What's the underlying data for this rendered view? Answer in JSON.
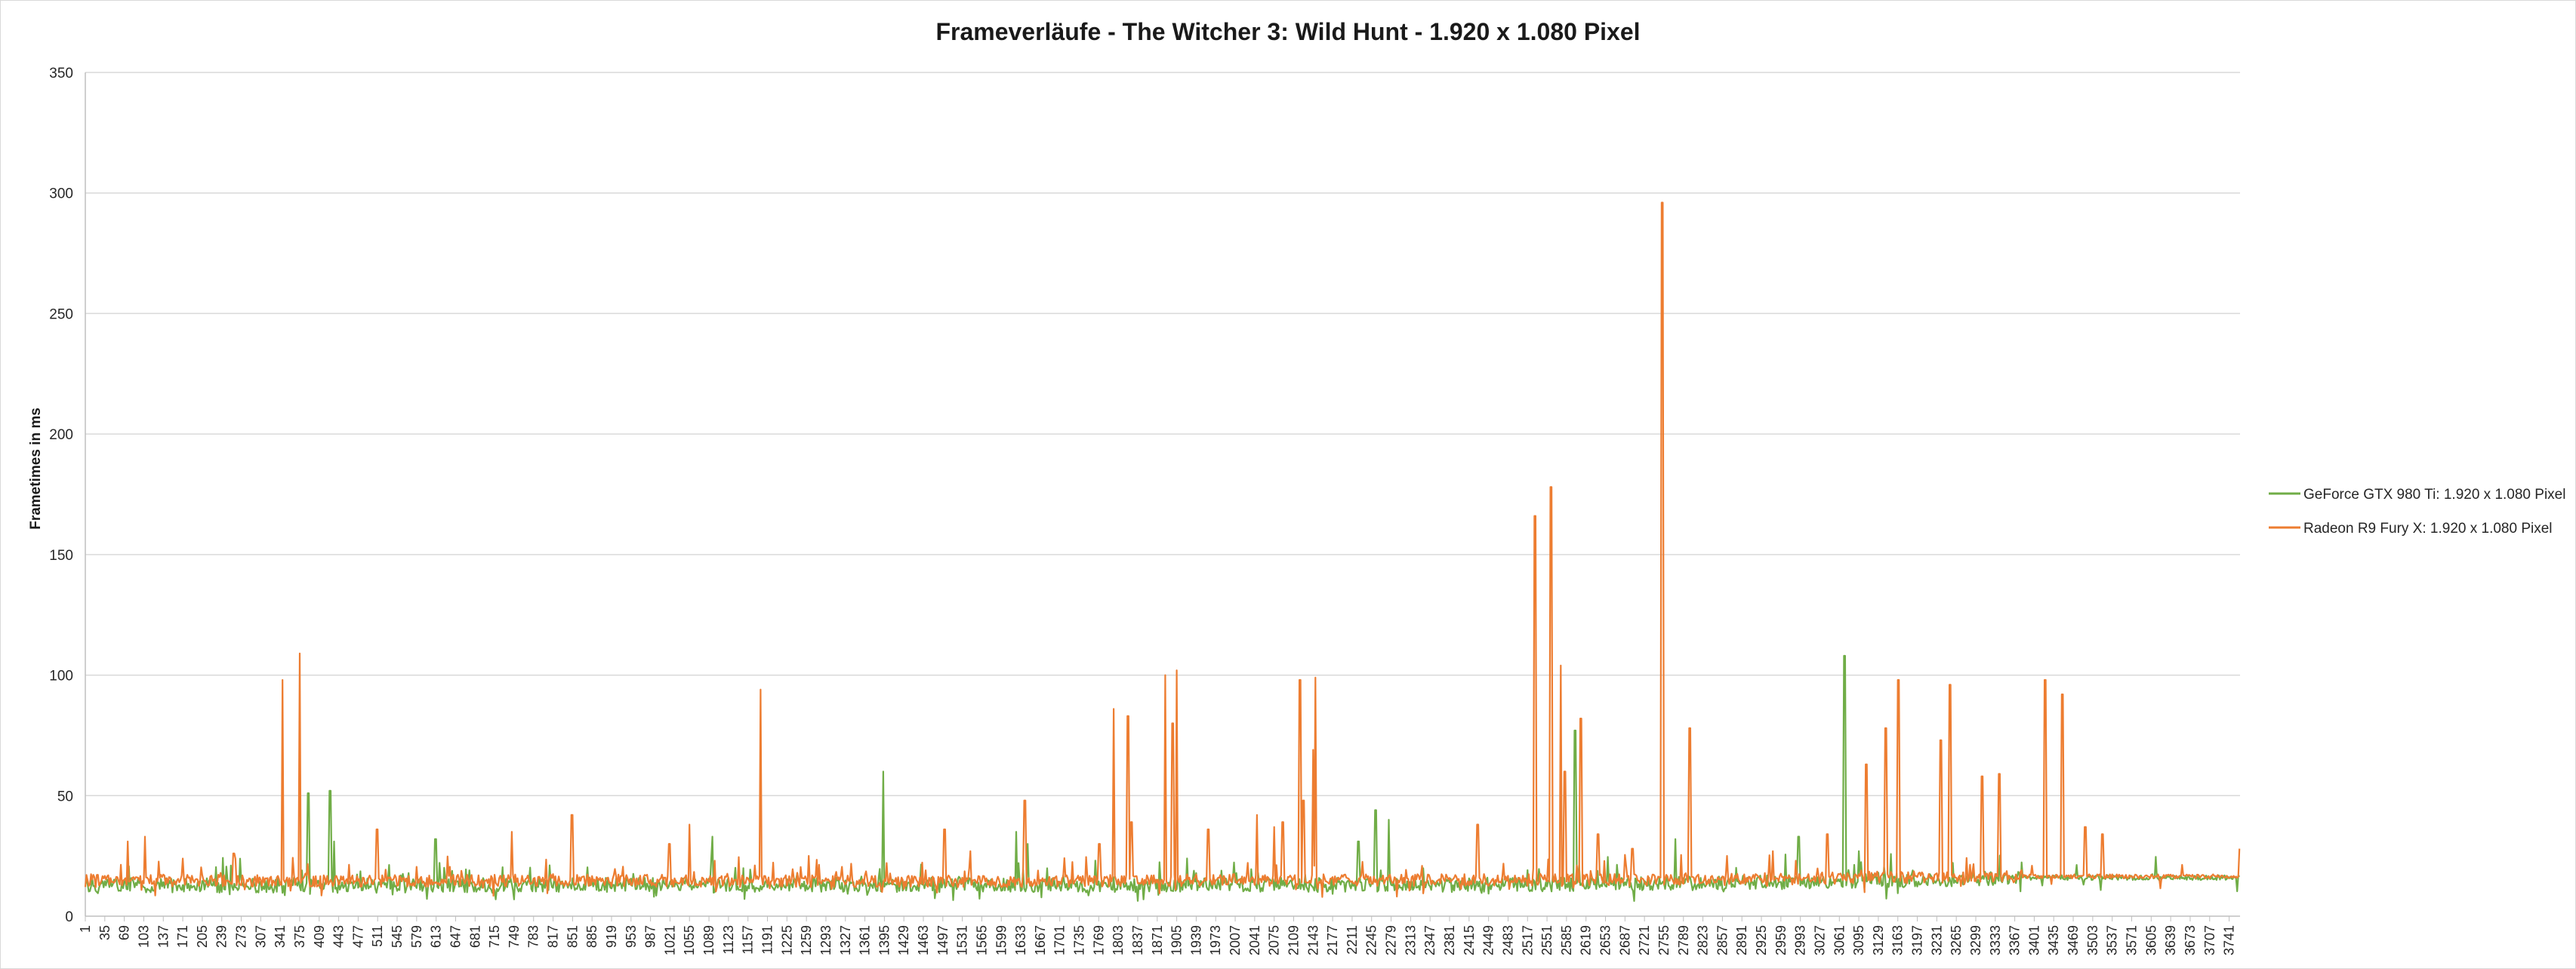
{
  "chart_data": {
    "type": "line",
    "title": "Frameverläufe - The Witcher 3: Wild Hunt - 1.920 x 1.080 Pixel",
    "xlabel": "",
    "ylabel": "Frametimes in ms",
    "xlim": [
      1,
      3760
    ],
    "ylim": [
      0,
      350
    ],
    "yticks": [
      0,
      50,
      100,
      150,
      200,
      250,
      300,
      350
    ],
    "xticks": [
      1,
      35,
      69,
      103,
      137,
      171,
      205,
      239,
      273,
      307,
      341,
      375,
      409,
      443,
      477,
      511,
      545,
      579,
      613,
      647,
      681,
      715,
      749,
      783,
      817,
      851,
      885,
      919,
      953,
      987,
      1021,
      1055,
      1089,
      1123,
      1157,
      1191,
      1225,
      1259,
      1293,
      1327,
      1361,
      1395,
      1429,
      1463,
      1497,
      1531,
      1565,
      1599,
      1633,
      1667,
      1701,
      1735,
      1769,
      1803,
      1837,
      1871,
      1905,
      1939,
      1973,
      2007,
      2041,
      2075,
      2109,
      2143,
      2177,
      2211,
      2245,
      2279,
      2313,
      2347,
      2381,
      2415,
      2449,
      2483,
      2517,
      2551,
      2585,
      2619,
      2653,
      2687,
      2721,
      2755,
      2789,
      2823,
      2857,
      2891,
      2925,
      2959,
      2993,
      3027,
      3061,
      3095,
      3129,
      3163,
      3197,
      3231,
      3265,
      3299,
      3333,
      3367,
      3401,
      3435,
      3469,
      3503,
      3537,
      3571,
      3605,
      3639,
      3673,
      3707,
      3741
    ],
    "grid": true,
    "legend_position": "right",
    "series": [
      {
        "name": "GeForce GTX 980 Ti: 1.920 x 1.080 Pixel",
        "color": "#70ad47",
        "baseline_points": [
          [
            1,
            13
          ],
          [
            400,
            12.5
          ],
          [
            800,
            13
          ],
          [
            1200,
            13
          ],
          [
            1600,
            13
          ],
          [
            2000,
            13
          ],
          [
            2400,
            13
          ],
          [
            2800,
            13.5
          ],
          [
            3100,
            14.5
          ],
          [
            3400,
            16
          ],
          [
            3760,
            16
          ]
        ],
        "spikes": [
          [
            390,
            51
          ],
          [
            428,
            52
          ],
          [
            435,
            31
          ],
          [
            612,
            32
          ],
          [
            1095,
            33
          ],
          [
            1393,
            60
          ],
          [
            1625,
            35
          ],
          [
            1645,
            30
          ],
          [
            2222,
            31
          ],
          [
            2252,
            44
          ],
          [
            2275,
            40
          ],
          [
            2600,
            77
          ],
          [
            2775,
            32
          ],
          [
            2990,
            33
          ],
          [
            3070,
            108
          ],
          [
            3095,
            27
          ]
        ]
      },
      {
        "name": "Radeon R9 Fury X: 1.920 x 1.080 Pixel",
        "color": "#ed7d31",
        "baseline_points": [
          [
            1,
            15
          ],
          [
            400,
            14.5
          ],
          [
            800,
            15
          ],
          [
            1200,
            14.5
          ],
          [
            1600,
            14.5
          ],
          [
            2000,
            15
          ],
          [
            2400,
            15
          ],
          [
            2800,
            15
          ],
          [
            3100,
            16
          ],
          [
            3400,
            16.5
          ],
          [
            3760,
            16.5
          ]
        ],
        "spikes": [
          [
            75,
            31
          ],
          [
            105,
            33
          ],
          [
            260,
            26
          ],
          [
            345,
            98
          ],
          [
            375,
            109
          ],
          [
            510,
            36
          ],
          [
            745,
            35
          ],
          [
            850,
            42
          ],
          [
            1020,
            30
          ],
          [
            1055,
            38
          ],
          [
            1179,
            94
          ],
          [
            1263,
            25
          ],
          [
            1500,
            36
          ],
          [
            1545,
            27
          ],
          [
            1640,
            48
          ],
          [
            1770,
            30
          ],
          [
            1795,
            86
          ],
          [
            1820,
            83
          ],
          [
            1826,
            39
          ],
          [
            1885,
            100
          ],
          [
            1898,
            80
          ],
          [
            1905,
            102
          ],
          [
            1960,
            36
          ],
          [
            2045,
            42
          ],
          [
            2075,
            37
          ],
          [
            2090,
            39
          ],
          [
            2120,
            98
          ],
          [
            2126,
            48
          ],
          [
            2143,
            69
          ],
          [
            2147,
            99
          ],
          [
            2430,
            38
          ],
          [
            2530,
            166
          ],
          [
            2558,
            178
          ],
          [
            2575,
            104
          ],
          [
            2582,
            60
          ],
          [
            2610,
            82
          ],
          [
            2640,
            34
          ],
          [
            2700,
            28
          ],
          [
            2752,
            296
          ],
          [
            2800,
            78
          ],
          [
            2865,
            25
          ],
          [
            2945,
            27
          ],
          [
            3040,
            34
          ],
          [
            3108,
            63
          ],
          [
            3142,
            78
          ],
          [
            3164,
            98
          ],
          [
            3238,
            73
          ],
          [
            3254,
            96
          ],
          [
            3310,
            58
          ],
          [
            3340,
            59
          ],
          [
            3420,
            98
          ],
          [
            3450,
            92
          ],
          [
            3490,
            37
          ],
          [
            3520,
            34
          ],
          [
            3760,
            28
          ]
        ]
      }
    ]
  }
}
